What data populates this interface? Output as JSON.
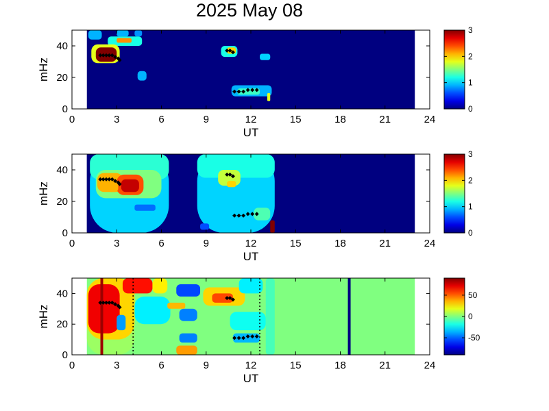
{
  "title": "2025 May 08",
  "colors": {
    "background": "#00008f",
    "panel3_fill": "#8fff70",
    "axis": "#000000",
    "marker": "#000000"
  },
  "chart_data": [
    {
      "type": "heatmap",
      "xlabel": "UT",
      "ylabel": "mHz",
      "xlim": [
        0,
        24
      ],
      "ylim": [
        0,
        50
      ],
      "xticks": [
        0,
        3,
        6,
        9,
        12,
        15,
        18,
        21,
        24
      ],
      "yticks": [
        0,
        20,
        40
      ],
      "data_range": [
        1,
        23
      ],
      "colorbar": {
        "min": 0,
        "max": 3,
        "ticks": [
          0,
          1,
          2,
          3
        ]
      },
      "background_value": 0,
      "blobs": [
        {
          "x0": 1.1,
          "x1": 2.0,
          "y0": 44,
          "y1": 50,
          "value": 0.9
        },
        {
          "x0": 3.0,
          "x1": 3.8,
          "y0": 46,
          "y1": 50,
          "value": 0.9
        },
        {
          "x0": 4.2,
          "x1": 4.7,
          "y0": 46,
          "y1": 50,
          "value": 0.8
        },
        {
          "x0": 2.4,
          "x1": 4.7,
          "y0": 40,
          "y1": 46,
          "value": 1.2
        },
        {
          "x0": 3.0,
          "x1": 4.0,
          "y0": 42,
          "y1": 45,
          "value": 2.2
        },
        {
          "x0": 1.3,
          "x1": 3.2,
          "y0": 29,
          "y1": 41,
          "value": 1.8
        },
        {
          "x0": 1.6,
          "x1": 3.0,
          "y0": 30,
          "y1": 39,
          "value": 3.0
        },
        {
          "x0": 4.4,
          "x1": 5.0,
          "y0": 18,
          "y1": 24,
          "value": 0.9
        },
        {
          "x0": 10.0,
          "x1": 11.1,
          "y0": 33,
          "y1": 40,
          "value": 1.2
        },
        {
          "x0": 10.4,
          "x1": 11.0,
          "y0": 35,
          "y1": 39,
          "value": 2.0
        },
        {
          "x0": 12.6,
          "x1": 13.3,
          "y0": 31,
          "y1": 35,
          "value": 1.0
        },
        {
          "x0": 10.7,
          "x1": 13.4,
          "y0": 8,
          "y1": 15,
          "value": 0.9
        },
        {
          "x0": 11.1,
          "x1": 12.6,
          "y0": 9,
          "y1": 13,
          "value": 1.3
        },
        {
          "x0": 13.1,
          "x1": 13.3,
          "y0": 5,
          "y1": 10,
          "value": 1.8
        }
      ],
      "markers": [
        {
          "x": [
            1.9,
            2.1,
            2.3,
            2.5,
            2.7,
            2.9,
            3.1,
            3.2
          ],
          "y": [
            34,
            34,
            34,
            34,
            34,
            33,
            32,
            31
          ]
        },
        {
          "x": [
            10.4,
            10.6,
            10.8
          ],
          "y": [
            37,
            37,
            36
          ]
        },
        {
          "x": [
            10.9,
            11.2,
            11.5,
            11.8,
            12.1,
            12.4
          ],
          "y": [
            11,
            11,
            11,
            12,
            12,
            12
          ]
        }
      ]
    },
    {
      "type": "heatmap",
      "xlabel": "UT",
      "ylabel": "mHz",
      "xlim": [
        0,
        24
      ],
      "ylim": [
        0,
        50
      ],
      "xticks": [
        0,
        3,
        6,
        9,
        12,
        15,
        18,
        21,
        24
      ],
      "yticks": [
        0,
        20,
        40
      ],
      "data_range": [
        1,
        23
      ],
      "colorbar": {
        "min": 0,
        "max": 3,
        "ticks": [
          0,
          1,
          2,
          3
        ]
      },
      "background_value": 0,
      "blobs": [
        {
          "x0": 1.2,
          "x1": 6.5,
          "y0": 0,
          "y1": 50,
          "value": 1.0
        },
        {
          "x0": 8.4,
          "x1": 13.6,
          "y0": 0,
          "y1": 50,
          "value": 1.0
        },
        {
          "x0": 1.2,
          "x1": 6.5,
          "y0": 34,
          "y1": 50,
          "value": 1.25
        },
        {
          "x0": 8.4,
          "x1": 13.6,
          "y0": 35,
          "y1": 50,
          "value": 1.2
        },
        {
          "x0": 1.6,
          "x1": 6.0,
          "y0": 22,
          "y1": 40,
          "value": 1.5
        },
        {
          "x0": 1.7,
          "x1": 3.4,
          "y0": 26,
          "y1": 38,
          "value": 2.1
        },
        {
          "x0": 3.0,
          "x1": 4.8,
          "y0": 24,
          "y1": 37,
          "value": 2.4
        },
        {
          "x0": 3.3,
          "x1": 4.5,
          "y0": 26,
          "y1": 34,
          "value": 2.8
        },
        {
          "x0": 2.4,
          "x1": 3.1,
          "y0": 26,
          "y1": 32,
          "value": 2.1
        },
        {
          "x0": 4.2,
          "x1": 5.6,
          "y0": 14,
          "y1": 18,
          "value": 0.7
        },
        {
          "x0": 9.8,
          "x1": 11.3,
          "y0": 30,
          "y1": 40,
          "value": 1.7
        },
        {
          "x0": 10.4,
          "x1": 11.0,
          "y0": 29,
          "y1": 33,
          "value": 2.0
        },
        {
          "x0": 8.6,
          "x1": 9.2,
          "y0": 2,
          "y1": 6,
          "value": 0.6
        },
        {
          "x0": 12.2,
          "x1": 13.3,
          "y0": 8,
          "y1": 16,
          "value": 1.35
        },
        {
          "x0": 13.3,
          "x1": 13.6,
          "y0": 0,
          "y1": 8,
          "value": 3.0
        },
        {
          "x0": 1.0,
          "x1": 1.2,
          "y0": 0,
          "y1": 50,
          "value": 0.0
        }
      ],
      "markers": [
        {
          "x": [
            1.9,
            2.1,
            2.3,
            2.5,
            2.7,
            2.9,
            3.1,
            3.2
          ],
          "y": [
            34,
            34,
            34,
            34,
            34,
            33,
            32,
            31
          ]
        },
        {
          "x": [
            10.4,
            10.6,
            10.8
          ],
          "y": [
            37,
            37,
            36
          ]
        },
        {
          "x": [
            10.9,
            11.2,
            11.5,
            11.8,
            12.1,
            12.4
          ],
          "y": [
            11,
            11,
            11,
            12,
            12,
            12
          ]
        }
      ]
    },
    {
      "type": "heatmap",
      "xlabel": "UT",
      "ylabel": "mHz",
      "xlim": [
        0,
        24
      ],
      "ylim": [
        0,
        50
      ],
      "xticks": [
        0,
        3,
        6,
        9,
        12,
        15,
        18,
        21,
        24
      ],
      "yticks": [
        0,
        20,
        40
      ],
      "data_range": [
        1,
        23
      ],
      "colorbar": {
        "min": -90,
        "max": 90,
        "ticks": [
          50,
          0,
          -50
        ]
      },
      "background_value": 0,
      "blobs": [
        {
          "x0": 1.0,
          "x1": 4.2,
          "y0": 0,
          "y1": 50,
          "value": 5
        },
        {
          "x0": 1.0,
          "x1": 4.2,
          "y0": 10,
          "y1": 50,
          "value": 30
        },
        {
          "x0": 1.1,
          "x1": 3.2,
          "y0": 14,
          "y1": 46,
          "value": 70
        },
        {
          "x0": 3.4,
          "x1": 5.4,
          "y0": 40,
          "y1": 50,
          "value": 65
        },
        {
          "x0": 5.4,
          "x1": 6.4,
          "y0": 40,
          "y1": 50,
          "value": 25
        },
        {
          "x0": 4.2,
          "x1": 6.6,
          "y0": 20,
          "y1": 38,
          "value": -25
        },
        {
          "x0": 3.0,
          "x1": 3.6,
          "y0": 16,
          "y1": 26,
          "value": -40
        },
        {
          "x0": 7.0,
          "x1": 8.6,
          "y0": 38,
          "y1": 46,
          "value": -55
        },
        {
          "x0": 7.2,
          "x1": 8.4,
          "y0": 22,
          "y1": 30,
          "value": -45
        },
        {
          "x0": 7.2,
          "x1": 8.4,
          "y0": 8,
          "y1": 14,
          "value": -45
        },
        {
          "x0": 7.0,
          "x1": 8.4,
          "y0": 0,
          "y1": 6,
          "value": 40
        },
        {
          "x0": 6.4,
          "x1": 7.6,
          "y0": 30,
          "y1": 34,
          "value": 35
        },
        {
          "x0": 8.8,
          "x1": 11.6,
          "y0": 32,
          "y1": 44,
          "value": 30
        },
        {
          "x0": 9.4,
          "x1": 10.8,
          "y0": 34,
          "y1": 40,
          "value": 55
        },
        {
          "x0": 11.2,
          "x1": 12.8,
          "y0": 40,
          "y1": 50,
          "value": -25
        },
        {
          "x0": 10.6,
          "x1": 13.0,
          "y0": 16,
          "y1": 28,
          "value": -20
        },
        {
          "x0": 10.8,
          "x1": 12.6,
          "y0": 8,
          "y1": 14,
          "value": -35
        },
        {
          "x0": 13.0,
          "x1": 13.6,
          "y0": 0,
          "y1": 50,
          "value": -10
        }
      ],
      "vertical_lines": [
        {
          "x": 2.0,
          "value": 85,
          "style": "solid"
        },
        {
          "x": 18.6,
          "value": -90,
          "style": "solid"
        },
        {
          "x": 4.1,
          "value": -90,
          "style": "dotted"
        },
        {
          "x": 12.6,
          "value": -90,
          "style": "dotted"
        }
      ],
      "markers": [
        {
          "x": [
            1.9,
            2.1,
            2.3,
            2.5,
            2.7,
            2.9,
            3.1,
            3.2
          ],
          "y": [
            34,
            34,
            34,
            34,
            34,
            33,
            32,
            31
          ]
        },
        {
          "x": [
            10.4,
            10.6,
            10.8
          ],
          "y": [
            37,
            37,
            36
          ]
        },
        {
          "x": [
            10.9,
            11.2,
            11.5,
            11.8,
            12.1,
            12.4
          ],
          "y": [
            11,
            11,
            11,
            12,
            12,
            12
          ]
        }
      ]
    }
  ]
}
